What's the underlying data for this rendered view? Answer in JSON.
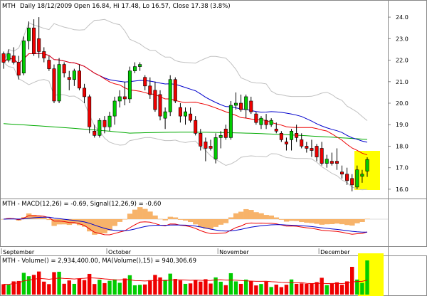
{
  "chart_data": {
    "type": "candlestick",
    "header": {
      "symbol": "MTH",
      "text": "Daily 18/12/2009 Open 16.84, Hi 17.48, Lo 16.57, Close 17.38 (3.8%)"
    },
    "price_axis": {
      "ylim": [
        15.6,
        24.4
      ],
      "ticks": [
        "24.0",
        "23.0",
        "22.0",
        "21.0",
        "20.0",
        "19.0",
        "18.0",
        "17.0",
        "16.0"
      ]
    },
    "month_labels": [
      {
        "label": "September",
        "index": 0
      },
      {
        "label": "October",
        "index": 21
      },
      {
        "label": "November",
        "index": 43
      },
      {
        "label": "December",
        "index": 63
      }
    ],
    "candles": [
      [
        22.3,
        22.4,
        21.6,
        21.9
      ],
      [
        22.0,
        22.5,
        21.9,
        22.3
      ],
      [
        22.2,
        22.6,
        21.8,
        21.9
      ],
      [
        21.9,
        22.2,
        21.1,
        21.3
      ],
      [
        21.4,
        23.1,
        21.3,
        22.9
      ],
      [
        22.9,
        23.8,
        22.5,
        23.5
      ],
      [
        23.5,
        23.9,
        22.2,
        22.3
      ],
      [
        23.0,
        24.0,
        22.1,
        22.4
      ],
      [
        22.4,
        22.6,
        21.9,
        22.1
      ],
      [
        22.0,
        22.2,
        21.5,
        21.6
      ],
      [
        21.6,
        21.8,
        20.0,
        20.1
      ],
      [
        20.1,
        22.1,
        20.0,
        21.8
      ],
      [
        21.8,
        21.9,
        21.2,
        21.4
      ],
      [
        21.2,
        21.5,
        20.6,
        21.1
      ],
      [
        21.1,
        21.6,
        20.8,
        21.5
      ],
      [
        21.5,
        21.8,
        20.6,
        20.7
      ],
      [
        20.7,
        20.9,
        20.0,
        20.3
      ],
      [
        20.3,
        20.4,
        18.6,
        18.9
      ],
      [
        18.7,
        19.0,
        18.4,
        18.5
      ],
      [
        18.5,
        19.3,
        18.4,
        19.2
      ],
      [
        19.2,
        19.4,
        18.6,
        18.9
      ],
      [
        18.9,
        19.6,
        18.7,
        19.4
      ],
      [
        19.4,
        20.3,
        19.0,
        20.1
      ],
      [
        20.1,
        20.6,
        19.8,
        20.3
      ],
      [
        20.3,
        21.0,
        19.9,
        20.2
      ],
      [
        20.2,
        21.7,
        20.0,
        21.5
      ],
      [
        21.5,
        21.9,
        21.4,
        21.7
      ],
      [
        21.7,
        21.9,
        21.5,
        21.8
      ],
      [
        21.2,
        21.3,
        20.6,
        20.8
      ],
      [
        20.8,
        21.2,
        20.2,
        20.4
      ],
      [
        20.6,
        21.0,
        19.6,
        19.7
      ],
      [
        20.4,
        20.6,
        19.2,
        19.4
      ],
      [
        19.3,
        19.8,
        18.8,
        19.6
      ],
      [
        19.6,
        21.3,
        19.4,
        21.1
      ],
      [
        21.1,
        21.2,
        20.0,
        20.1
      ],
      [
        19.8,
        20.0,
        19.1,
        19.4
      ],
      [
        19.4,
        19.8,
        19.0,
        19.6
      ],
      [
        19.5,
        19.8,
        19.1,
        19.2
      ],
      [
        19.2,
        19.4,
        18.5,
        18.6
      ],
      [
        18.6,
        18.8,
        17.8,
        18.0
      ],
      [
        18.2,
        18.4,
        17.3,
        17.9
      ],
      [
        18.0,
        18.3,
        17.8,
        17.9
      ],
      [
        17.4,
        18.6,
        17.2,
        18.4
      ],
      [
        18.4,
        18.7,
        17.9,
        18.5
      ],
      [
        18.8,
        19.0,
        18.3,
        18.4
      ],
      [
        18.4,
        20.1,
        18.3,
        19.9
      ],
      [
        19.9,
        20.5,
        19.7,
        20.0
      ],
      [
        20.0,
        20.4,
        19.6,
        19.7
      ],
      [
        19.7,
        20.4,
        19.3,
        20.3
      ],
      [
        20.1,
        20.3,
        19.5,
        19.6
      ],
      [
        19.5,
        19.6,
        19.0,
        19.1
      ],
      [
        19.0,
        19.4,
        18.8,
        19.3
      ],
      [
        19.2,
        19.5,
        18.8,
        19.0
      ],
      [
        19.0,
        19.3,
        18.9,
        19.2
      ],
      [
        18.8,
        19.1,
        18.6,
        18.7
      ],
      [
        18.6,
        18.7,
        18.2,
        18.3
      ],
      [
        18.2,
        18.4,
        17.8,
        18.1
      ],
      [
        18.3,
        18.8,
        17.8,
        18.7
      ],
      [
        18.6,
        19.0,
        18.2,
        18.4
      ],
      [
        18.3,
        18.6,
        17.9,
        18.0
      ],
      [
        18.0,
        18.2,
        17.7,
        17.9
      ],
      [
        17.9,
        18.3,
        17.5,
        17.8
      ],
      [
        18.0,
        18.1,
        17.3,
        17.5
      ],
      [
        17.9,
        18.2,
        17.1,
        17.2
      ],
      [
        17.2,
        17.6,
        17.0,
        17.4
      ],
      [
        17.3,
        17.7,
        17.1,
        17.2
      ],
      [
        17.3,
        17.9,
        16.9,
        17.2
      ],
      [
        16.8,
        17.1,
        16.5,
        16.7
      ],
      [
        16.7,
        17.0,
        16.2,
        16.4
      ],
      [
        16.5,
        16.7,
        15.9,
        16.2
      ],
      [
        16.1,
        17.1,
        16.0,
        16.9
      ],
      [
        16.6,
        16.9,
        16.3,
        16.7
      ],
      [
        16.84,
        17.48,
        16.57,
        17.38
      ]
    ],
    "macd_header": "MTH - MACD(12,26) = -0.69, Signal(12,26,9) = -0.60",
    "volume_header": "MTH - Volume() = 2,934,400.00, MA(Volume(),15) = 940,306.69",
    "colors": {
      "up": "#00cc00",
      "down": "#ee0000",
      "highlight": "#ffff00",
      "ma_fast": "#ee0000",
      "ma_slow": "#0000cc",
      "ma_long": "#00aa00",
      "bands": "#c0c0c0",
      "histogram": "#f7b36a"
    }
  }
}
